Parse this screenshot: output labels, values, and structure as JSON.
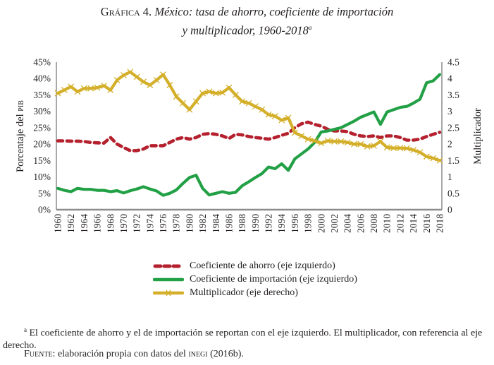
{
  "title": {
    "prefix": "Gráfica 4.",
    "line1_italic": "México: tasa de ahorro, coeficiente de importación",
    "line2_italic": "y multiplicador, 1960-2018",
    "note_mark": "a"
  },
  "chart_data": {
    "type": "line",
    "title": "México: tasa de ahorro, coeficiente de importación y multiplicador, 1960-2018",
    "xlabel": "",
    "ylabel": "Porcentaje del PIB",
    "y2label": "Multiplicador",
    "ylim": [
      0,
      45
    ],
    "y2lim": [
      0,
      4.5
    ],
    "yticks": [
      "0%",
      "5%",
      "10%",
      "15%",
      "20%",
      "25%",
      "30%",
      "35%",
      "40%",
      "45%"
    ],
    "y2ticks": [
      "0",
      "0.5",
      "1",
      "1.5",
      "2",
      "2.5",
      "3",
      "3.5",
      "4",
      "4.5"
    ],
    "xticks": [
      "1960",
      "1962",
      "1964",
      "1966",
      "1968",
      "1970",
      "1972",
      "1974",
      "1976",
      "1978",
      "1980",
      "1982",
      "1984",
      "1986",
      "1988",
      "1990",
      "1992",
      "1994",
      "1996",
      "1998",
      "2000",
      "2002",
      "2004",
      "2006",
      "2008",
      "2010",
      "2012",
      "2014",
      "2016",
      "2018"
    ],
    "grid": false,
    "legend_position": "bottom",
    "x": [
      1960,
      1961,
      1962,
      1963,
      1964,
      1965,
      1966,
      1967,
      1968,
      1969,
      1970,
      1971,
      1972,
      1973,
      1974,
      1975,
      1976,
      1977,
      1978,
      1979,
      1980,
      1981,
      1982,
      1983,
      1984,
      1985,
      1986,
      1987,
      1988,
      1989,
      1990,
      1991,
      1992,
      1993,
      1994,
      1995,
      1996,
      1997,
      1998,
      1999,
      2000,
      2001,
      2002,
      2003,
      2004,
      2005,
      2006,
      2007,
      2008,
      2009,
      2010,
      2011,
      2012,
      2013,
      2014,
      2015,
      2016,
      2017,
      2018
    ],
    "series": [
      {
        "name": "Coeficiente de ahorro (eje izquierdo)",
        "axis": "left",
        "color": "#b5202e",
        "style": "dashed",
        "values": [
          21.0,
          21.0,
          20.9,
          20.9,
          20.8,
          20.5,
          20.4,
          20.3,
          22.0,
          20.0,
          19.0,
          18.0,
          18.0,
          18.5,
          19.5,
          19.5,
          19.5,
          20.5,
          21.5,
          22.0,
          21.5,
          22.0,
          23.0,
          23.2,
          23.0,
          22.5,
          21.7,
          23.0,
          22.8,
          22.3,
          22.0,
          21.8,
          21.5,
          22.0,
          22.7,
          23.3,
          25.0,
          26.2,
          26.7,
          26.0,
          25.5,
          24.5,
          24.0,
          24.0,
          23.8,
          23.0,
          22.5,
          22.3,
          22.5,
          22.0,
          22.5,
          22.5,
          22.0,
          21.2,
          21.2,
          21.5,
          22.3,
          23.0,
          23.6
        ]
      },
      {
        "name": "Coeficiente de importación (eje izquierdo)",
        "axis": "left",
        "color": "#22a045",
        "style": "solid",
        "values": [
          6.5,
          5.9,
          5.5,
          6.5,
          6.2,
          6.2,
          5.9,
          5.9,
          5.5,
          5.8,
          5.1,
          5.8,
          6.3,
          7.0,
          6.3,
          5.7,
          4.4,
          5.0,
          6.0,
          8.0,
          9.8,
          10.5,
          6.5,
          4.5,
          5.0,
          5.5,
          5.0,
          5.3,
          7.3,
          8.5,
          9.8,
          11.0,
          13.0,
          12.5,
          14.0,
          12.0,
          15.5,
          17.0,
          18.5,
          20.5,
          23.7,
          24.0,
          24.5,
          25.0,
          26.0,
          27.0,
          28.2,
          29.0,
          29.8,
          26.0,
          29.8,
          30.5,
          31.2,
          31.5,
          32.5,
          33.7,
          38.7,
          39.3,
          41.2
        ]
      },
      {
        "name": "Multiplicador (eje derecho)",
        "axis": "right",
        "color": "#d4af2a",
        "style": "solid-cross",
        "values": [
          3.55,
          3.65,
          3.75,
          3.6,
          3.7,
          3.7,
          3.72,
          3.78,
          3.65,
          3.95,
          4.1,
          4.2,
          4.05,
          3.9,
          3.8,
          3.95,
          4.12,
          3.8,
          3.45,
          3.25,
          3.05,
          3.3,
          3.55,
          3.6,
          3.55,
          3.57,
          3.72,
          3.5,
          3.3,
          3.25,
          3.15,
          3.05,
          2.9,
          2.85,
          2.73,
          2.8,
          2.35,
          2.25,
          2.15,
          2.1,
          2.03,
          2.1,
          2.08,
          2.08,
          2.05,
          2.0,
          2.0,
          1.93,
          1.95,
          2.08,
          1.9,
          1.88,
          1.88,
          1.87,
          1.82,
          1.75,
          1.62,
          1.57,
          1.5
        ]
      }
    ]
  },
  "legend": {
    "items": [
      {
        "label": "Coeficiente de ahorro (eje izquierdo)"
      },
      {
        "label": "Coeficiente de importación (eje izquierdo)"
      },
      {
        "label": "Multiplicador (eje derecho)"
      }
    ]
  },
  "footnotes": {
    "note_mark": "a",
    "note_text": " El coeficiente de ahorro y el de importación se reportan con el eje izquierdo. El multiplicador, con referencia al eje derecho.",
    "source_label": "Fuente:",
    "source_text": " elaboración propia con datos del ",
    "source_org": "inegi",
    "source_tail": " (2016b)."
  }
}
